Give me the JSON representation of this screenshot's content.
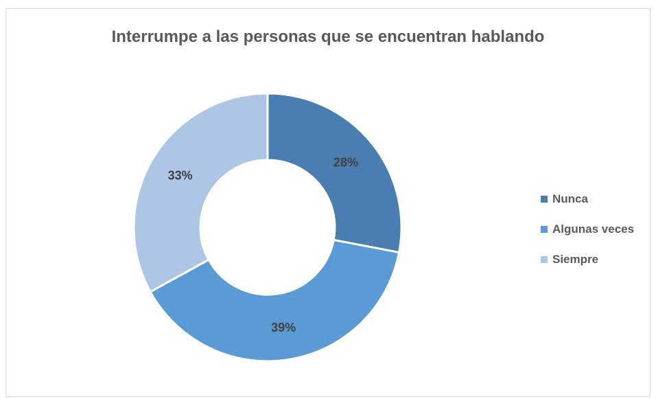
{
  "chart_data": {
    "type": "pie",
    "variant": "donut",
    "title": "Interrumpe a las personas que se encuentran hablando",
    "categories": [
      "Nunca",
      "Algunas veces",
      "Siempre"
    ],
    "values": [
      28,
      39,
      33
    ],
    "data_labels": [
      "28%",
      "39%",
      "33%"
    ],
    "colors": [
      "#4a7eb0",
      "#5b9bd5",
      "#adc6e5"
    ],
    "legend_position": "right"
  }
}
